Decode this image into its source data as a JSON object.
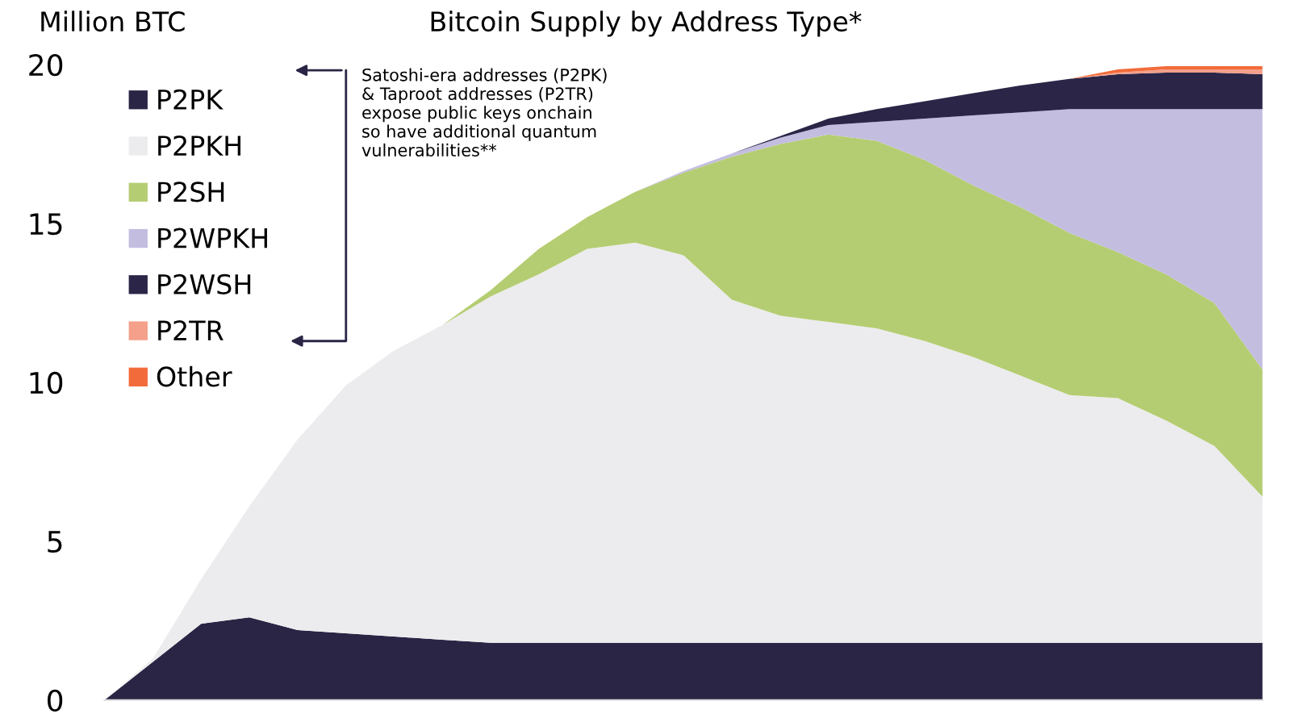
{
  "chart_data": {
    "type": "area",
    "stacked": true,
    "title": "Bitcoin Supply by Address Type*",
    "ylabel": "Million BTC",
    "categories": [
      null,
      null,
      null,
      null,
      null,
      null,
      null,
      null,
      null,
      null,
      null,
      null,
      null,
      null,
      null,
      null,
      null,
      null,
      null,
      null,
      null,
      null,
      null,
      null,
      null
    ],
    "series": [
      {
        "name": "P2PK",
        "color": "#2a2545",
        "values": [
          0,
          1.2,
          2.4,
          2.6,
          2.2,
          2.1,
          2.0,
          1.9,
          1.8,
          1.8,
          1.8,
          1.8,
          1.8,
          1.8,
          1.8,
          1.8,
          1.8,
          1.8,
          1.8,
          1.8,
          1.8,
          1.8,
          1.8,
          1.8,
          1.8
        ]
      },
      {
        "name": "P2PKH",
        "color": "#ececee",
        "values": [
          0,
          0.1,
          1.4,
          3.5,
          6.0,
          7.8,
          9.0,
          9.9,
          10.9,
          11.6,
          12.4,
          12.6,
          12.2,
          10.8,
          10.3,
          10.1,
          9.9,
          9.5,
          9.0,
          8.4,
          7.8,
          7.7,
          7.0,
          6.2,
          4.6
        ]
      },
      {
        "name": "P2SH",
        "color": "#b5cd72",
        "values": [
          0,
          0,
          0,
          0,
          0,
          0,
          0,
          0,
          0.2,
          0.8,
          1.0,
          1.6,
          2.6,
          4.5,
          5.4,
          5.9,
          5.9,
          5.7,
          5.4,
          5.3,
          5.1,
          4.6,
          4.6,
          4.5,
          4.0
        ]
      },
      {
        "name": "P2WPKH",
        "color": "#c3bde0",
        "values": [
          0,
          0,
          0,
          0,
          0,
          0,
          0,
          0,
          0,
          0,
          0,
          0,
          0.05,
          0.1,
          0.2,
          0.3,
          0.6,
          1.3,
          2.2,
          3.0,
          3.9,
          4.5,
          5.2,
          6.1,
          8.2
        ]
      },
      {
        "name": "P2WSH",
        "color": "#2b2547",
        "values": [
          0,
          0,
          0,
          0,
          0,
          0,
          0,
          0,
          0,
          0,
          0,
          0,
          0,
          0,
          0.05,
          0.2,
          0.4,
          0.55,
          0.7,
          0.85,
          0.95,
          1.1,
          1.15,
          1.15,
          1.1
        ]
      },
      {
        "name": "P2TR",
        "color": "#f4a08a",
        "values": [
          0,
          0,
          0,
          0,
          0,
          0,
          0,
          0,
          0,
          0,
          0,
          0,
          0,
          0,
          0,
          0,
          0,
          0,
          0,
          0,
          0,
          0.05,
          0.1,
          0.1,
          0.15
        ]
      },
      {
        "name": "Other",
        "color": "#f26b3a",
        "values": [
          0,
          0,
          0,
          0,
          0,
          0,
          0,
          0,
          0,
          0,
          0,
          0,
          0,
          0,
          0,
          0,
          0,
          0,
          0,
          0,
          0,
          0.1,
          0.1,
          0.1,
          0.1
        ]
      }
    ],
    "ylim": [
      0,
      20
    ],
    "yticks": [
      0,
      5,
      10,
      15,
      20
    ],
    "grid": false,
    "legend": "top left",
    "annotations": [
      "Satoshi-era addresses (P2PK)\n& Taproot addresses (P2TR)\nexpose public keys onchain\nso have additional quantum\nvulnerabilities**"
    ]
  }
}
